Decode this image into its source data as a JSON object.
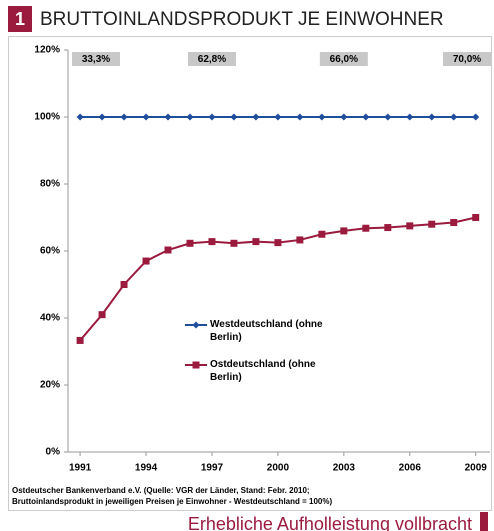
{
  "header": {
    "number": "1",
    "title": "BRUTTOINLANDSPRODUKT JE EINWOHNER"
  },
  "chart_data": {
    "type": "line",
    "x": [
      1991,
      1992,
      1993,
      1994,
      1995,
      1996,
      1997,
      1998,
      1999,
      2000,
      2001,
      2002,
      2003,
      2004,
      2005,
      2006,
      2007,
      2008,
      2009
    ],
    "series": [
      {
        "name": "Westdeutschland (ohne Berlin)",
        "color": "#1f4e9c",
        "marker": "diamond",
        "values": [
          100,
          100,
          100,
          100,
          100,
          100,
          100,
          100,
          100,
          100,
          100,
          100,
          100,
          100,
          100,
          100,
          100,
          100,
          100
        ]
      },
      {
        "name": "Ostdeutschland (ohne Berlin)",
        "color": "#9b1b3f",
        "marker": "square",
        "values": [
          33.3,
          41,
          50,
          57,
          60.3,
          62.3,
          62.8,
          62.3,
          62.8,
          62.5,
          63.3,
          65,
          66,
          66.8,
          67,
          67.5,
          68,
          68.5,
          70
        ]
      }
    ],
    "xlim": [
      1990.45,
      2009.65
    ],
    "xticks": [
      1991,
      1994,
      1997,
      2000,
      2003,
      2006,
      2009
    ],
    "ylim": [
      0,
      120
    ],
    "yticks": [
      {
        "value": 0,
        "label": "0%"
      },
      {
        "value": 20,
        "label": "20%"
      },
      {
        "value": 40,
        "label": "40%"
      },
      {
        "value": 60,
        "label": "60%"
      },
      {
        "value": 80,
        "label": "80%"
      },
      {
        "value": 100,
        "label": "100%"
      },
      {
        "value": 120,
        "label": "120%"
      }
    ],
    "grid": false,
    "annotations": [
      "33,3%",
      "62,8%",
      "66,0%",
      "70,0%"
    ]
  },
  "source": [
    "Ostdeutscher Bankenverband e.V. (Quelle: VGR der Länder, Stand: Febr. 2010;",
    "Bruttoinlandsprodukt in jeweiligen Preisen je Einwohner - Westdeutschland = 100%)"
  ],
  "footer": "Erhebliche Aufholleistung vollbracht"
}
